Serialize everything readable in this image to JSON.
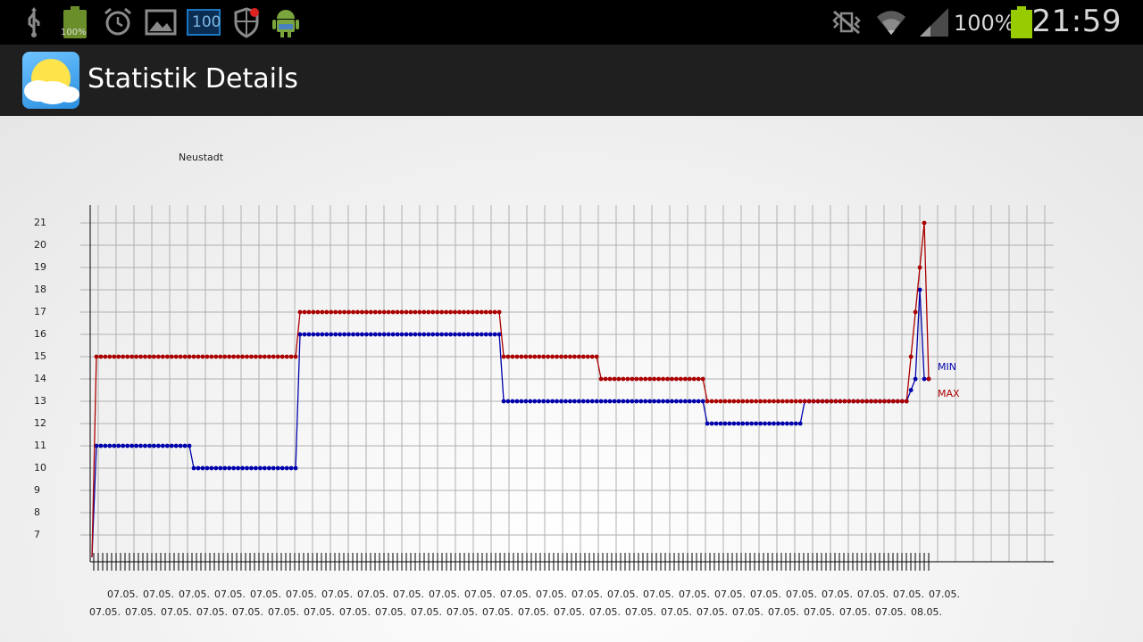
{
  "status_bar": {
    "icons": [
      "usb-icon",
      "battery-widget-icon",
      "alarm-icon",
      "gallery-icon",
      "counter-100-icon",
      "shield-icon",
      "android-icon",
      "mute-vibrate-icon",
      "wifi-icon",
      "signal-icon",
      "battery-icon"
    ],
    "battery_widget_label": "100%",
    "counter_label": "100",
    "battery_percent": "100%",
    "time": "21:59",
    "colors": {
      "background": "#000000",
      "battery_green": "#99cc00"
    }
  },
  "action_bar": {
    "title": "Statistik Details",
    "icon": "weather-app-icon"
  },
  "chart_data": {
    "type": "line",
    "title": "Neustadt",
    "y_ticks": [
      7,
      8,
      9,
      10,
      11,
      12,
      13,
      14,
      15,
      16,
      17,
      18,
      19,
      20,
      21
    ],
    "ylim": [
      6,
      21
    ],
    "x_labels_row1": [
      "07.05.",
      "07.05.",
      "07.05.",
      "07.05.",
      "07.05.",
      "07.05.",
      "07.05.",
      "07.05.",
      "07.05.",
      "07.05.",
      "07.05.",
      "07.05.",
      "07.05.",
      "07.05.",
      "07.05.",
      "07.05.",
      "07.05.",
      "07.05.",
      "07.05.",
      "07.05.",
      "07.05.",
      "07.05.",
      "07.05.",
      "07.05."
    ],
    "x_labels_row2": [
      "07.05.",
      "07.05.",
      "07.05.",
      "07.05.",
      "07.05.",
      "07.05.",
      "07.05.",
      "07.05.",
      "07.05.",
      "07.05.",
      "07.05.",
      "07.05.",
      "07.05.",
      "07.05.",
      "07.05.",
      "07.05.",
      "07.05.",
      "07.05.",
      "07.05.",
      "07.05.",
      "07.05.",
      "07.05.",
      "07.05.",
      "08.05."
    ],
    "grid": true,
    "legend_position": "right",
    "series": [
      {
        "name": "MIN",
        "color": "#0000aa",
        "segments": [
          [
            0,
            6
          ],
          [
            1,
            11
          ],
          [
            22,
            11
          ],
          [
            23,
            10
          ],
          [
            46,
            10
          ],
          [
            47,
            16
          ],
          [
            92,
            16
          ],
          [
            93,
            13
          ],
          [
            138,
            13
          ],
          [
            139,
            12
          ],
          [
            160,
            12
          ],
          [
            161,
            13
          ],
          [
            184,
            13
          ],
          [
            186,
            14
          ],
          [
            187,
            18
          ],
          [
            188,
            14
          ],
          [
            189,
            14
          ]
        ]
      },
      {
        "name": "MAX",
        "color": "#aa0000",
        "segments": [
          [
            0,
            6
          ],
          [
            1,
            15
          ],
          [
            46,
            15
          ],
          [
            47,
            17
          ],
          [
            92,
            17
          ],
          [
            93,
            15
          ],
          [
            114,
            15
          ],
          [
            115,
            14
          ],
          [
            138,
            14
          ],
          [
            139,
            13
          ],
          [
            160,
            13
          ],
          [
            161,
            13
          ],
          [
            184,
            13
          ],
          [
            186,
            17
          ],
          [
            187,
            19
          ],
          [
            188,
            21
          ],
          [
            189,
            14
          ]
        ]
      }
    ]
  }
}
